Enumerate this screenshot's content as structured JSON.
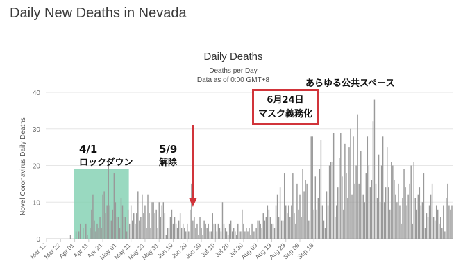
{
  "page": {
    "title": "Daily New Deaths in Nevada"
  },
  "annotations": {
    "lockdown_start_date": "4/1",
    "lockdown_start_text": "ロックダウン",
    "lockdown_end_date": "5/9",
    "lockdown_end_text": "解除",
    "mask_date": "6月24日",
    "mask_text": "マスク義務化",
    "public_space": "あらゆる公共スペース"
  },
  "colors": {
    "bar": "#999999",
    "highlight": "#7fcfb0",
    "callout": "#d1343a",
    "grid": "#e6e6e6"
  },
  "chart_data": {
    "type": "bar",
    "title": "Daily Deaths",
    "subtitle": "Deaths per Day",
    "subtitle2": "Data as of 0:00 GMT+8",
    "ylabel": "Novel Coronavirus Daily Deaths",
    "xlabel": "",
    "ylim": [
      0,
      40
    ],
    "yticks": [
      0,
      10,
      20,
      30,
      40
    ],
    "grid": true,
    "start_date": "Mar 12",
    "tick_labels": [
      "Mar 12",
      "Mar 22",
      "Apr 01",
      "Apr 11",
      "Apr 21",
      "May 01",
      "May 11",
      "May 21",
      "May 31",
      "Jun 10",
      "Jun 20",
      "Jun 30",
      "Jul 10",
      "Jul 20",
      "Jul 30",
      "Aug 09",
      "Aug 19",
      "Aug 29",
      "Sep 08",
      "Sep 18"
    ],
    "highlight_range": [
      "Apr 01",
      "May 09"
    ],
    "marker_date": "Jun 24",
    "values": [
      0,
      0,
      0,
      0,
      0,
      0,
      0,
      0,
      0,
      0,
      0,
      0,
      0,
      0,
      0,
      0,
      0,
      1,
      0,
      0,
      0,
      2,
      0,
      2,
      4,
      0,
      3,
      0,
      4,
      1,
      0,
      3,
      8,
      12,
      5,
      2,
      4,
      3,
      6,
      3,
      12,
      13,
      7,
      9,
      22,
      9,
      5,
      8,
      18,
      10,
      6,
      6,
      3,
      11,
      9,
      6,
      6,
      2,
      8,
      4,
      9,
      5,
      7,
      4,
      7,
      13,
      5,
      6,
      12,
      7,
      9,
      3,
      12,
      7,
      3,
      10,
      10,
      7,
      8,
      3,
      10,
      6,
      9,
      10,
      7,
      1,
      3,
      3,
      6,
      8,
      4,
      6,
      4,
      3,
      5,
      7,
      3,
      4,
      3,
      2,
      4,
      2,
      8,
      15,
      5,
      6,
      3,
      4,
      1,
      6,
      3,
      1,
      5,
      4,
      3,
      4,
      2,
      2,
      7,
      4,
      4,
      2,
      4,
      3,
      2,
      10,
      4,
      3,
      2,
      1,
      4,
      5,
      2,
      3,
      2,
      1,
      4,
      2,
      2,
      8,
      4,
      2,
      3,
      2,
      3,
      1,
      4,
      2,
      2,
      3,
      5,
      5,
      4,
      3,
      7,
      5,
      6,
      9,
      8,
      6,
      4,
      4,
      3,
      9,
      12,
      6,
      14,
      5,
      5,
      18,
      9,
      7,
      9,
      6,
      9,
      18,
      7,
      4,
      15,
      8,
      12,
      6,
      19,
      13,
      16,
      15,
      5,
      5,
      28,
      28,
      8,
      17,
      8,
      11,
      19,
      27,
      9,
      5,
      3,
      13,
      9,
      20,
      21,
      21,
      29,
      6,
      9,
      14,
      22,
      29,
      17,
      8,
      26,
      18,
      11,
      25,
      30,
      12,
      28,
      15,
      20,
      34,
      15,
      24,
      24,
      12,
      10,
      18,
      28,
      20,
      14,
      16,
      32,
      38,
      15,
      11,
      23,
      10,
      20,
      28,
      10,
      14,
      25,
      14,
      8,
      21,
      20,
      16,
      12,
      10,
      15,
      9,
      4,
      11,
      19,
      14,
      9,
      12,
      15,
      20,
      4,
      21,
      11,
      8,
      12,
      14,
      9,
      10,
      18,
      3,
      7,
      6,
      9,
      12,
      15,
      6,
      5,
      9,
      8,
      4,
      6,
      3,
      9,
      2,
      11,
      15,
      9,
      8,
      9
    ]
  }
}
